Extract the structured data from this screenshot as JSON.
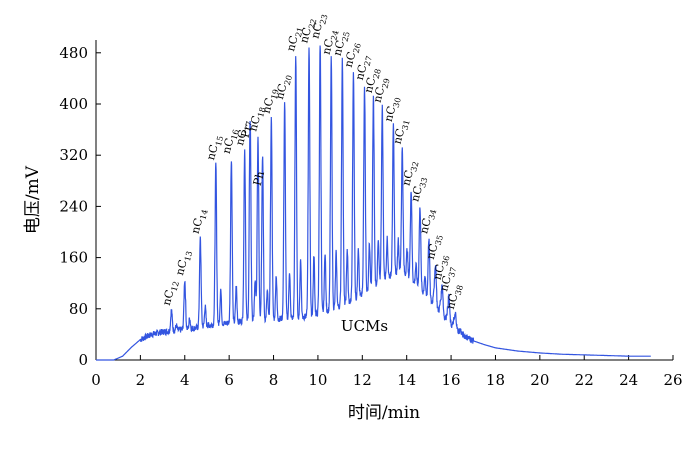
{
  "chart_data": {
    "type": "line",
    "title": "",
    "xlabel": "时间/min",
    "ylabel": "电压/mV",
    "xlim": [
      0,
      26
    ],
    "ylim": [
      0,
      500
    ],
    "x_ticks": [
      0,
      2,
      4,
      6,
      8,
      10,
      12,
      14,
      16,
      18,
      20,
      22,
      24,
      26
    ],
    "y_ticks": [
      0,
      80,
      160,
      240,
      320,
      400,
      480
    ],
    "line_color": "#3355e0",
    "grid": false,
    "series": [
      {
        "name": "",
        "baseline": [
          [
            0.0,
            0
          ],
          [
            0.8,
            0
          ],
          [
            1.2,
            6
          ],
          [
            1.6,
            20
          ],
          [
            2.0,
            32
          ],
          [
            2.5,
            40
          ],
          [
            3.0,
            44
          ],
          [
            3.5,
            46
          ],
          [
            4.0,
            48
          ],
          [
            4.5,
            50
          ],
          [
            5.0,
            54
          ],
          [
            5.5,
            56
          ],
          [
            6.0,
            58
          ],
          [
            6.5,
            60
          ],
          [
            7.0,
            62
          ],
          [
            7.5,
            63
          ],
          [
            8.0,
            64
          ],
          [
            8.5,
            65
          ],
          [
            9.0,
            66
          ],
          [
            9.5,
            68
          ],
          [
            10.0,
            72
          ],
          [
            10.5,
            78
          ],
          [
            11.0,
            84
          ],
          [
            11.5,
            92
          ],
          [
            12.0,
            102
          ],
          [
            12.5,
            115
          ],
          [
            13.0,
            128
          ],
          [
            13.5,
            136
          ],
          [
            13.8,
            138
          ],
          [
            14.0,
            132
          ],
          [
            14.5,
            115
          ],
          [
            15.0,
            95
          ],
          [
            15.5,
            75
          ],
          [
            16.0,
            55
          ],
          [
            16.5,
            40
          ],
          [
            17.0,
            30
          ],
          [
            17.5,
            24
          ],
          [
            18.0,
            19
          ],
          [
            19.0,
            14
          ],
          [
            20.0,
            11
          ],
          [
            21.0,
            9
          ],
          [
            22.0,
            8
          ],
          [
            23.0,
            7
          ],
          [
            24.0,
            6
          ],
          [
            25.0,
            6
          ]
        ],
        "peaks": [
          {
            "label": "nC12",
            "x": 3.4,
            "y": 78
          },
          {
            "label": "nC13",
            "x": 4.0,
            "y": 125
          },
          {
            "label": "nC14",
            "x": 4.7,
            "y": 190
          },
          {
            "label": "nC15",
            "x": 5.4,
            "y": 305
          },
          {
            "label": "nC16",
            "x": 6.1,
            "y": 315
          },
          {
            "label": "nC17",
            "x": 6.7,
            "y": 328
          },
          {
            "label": "Pr",
            "x": 6.95,
            "y": 340
          },
          {
            "label": "nC18",
            "x": 7.3,
            "y": 350
          },
          {
            "label": "Ph",
            "x": 7.5,
            "y": 265
          },
          {
            "label": "nC19",
            "x": 7.9,
            "y": 378
          },
          {
            "label": "nC20",
            "x": 8.5,
            "y": 400
          },
          {
            "label": "nC21",
            "x": 9.0,
            "y": 475
          },
          {
            "label": "nC22",
            "x": 9.6,
            "y": 488
          },
          {
            "label": "nC23",
            "x": 10.1,
            "y": 495
          },
          {
            "label": "nC24",
            "x": 10.6,
            "y": 470
          },
          {
            "label": "nC25",
            "x": 11.1,
            "y": 468
          },
          {
            "label": "nC26",
            "x": 11.6,
            "y": 450
          },
          {
            "label": "nC27",
            "x": 12.1,
            "y": 430
          },
          {
            "label": "nC28",
            "x": 12.5,
            "y": 410
          },
          {
            "label": "nC29",
            "x": 12.9,
            "y": 395
          },
          {
            "label": "nC30",
            "x": 13.4,
            "y": 365
          },
          {
            "label": "nC31",
            "x": 13.8,
            "y": 330
          },
          {
            "label": "nC32",
            "x": 14.2,
            "y": 265
          },
          {
            "label": "nC33",
            "x": 14.6,
            "y": 240
          },
          {
            "label": "nC34",
            "x": 15.0,
            "y": 190
          },
          {
            "label": "nC35",
            "x": 15.3,
            "y": 150
          },
          {
            "label": "nC36",
            "x": 15.6,
            "y": 118
          },
          {
            "label": "nC37",
            "x": 15.9,
            "y": 100
          },
          {
            "label": "nC38",
            "x": 16.2,
            "y": 72
          }
        ]
      }
    ],
    "annotations": [
      {
        "text": "UCMs",
        "x": 12.1,
        "y": 45
      }
    ]
  }
}
